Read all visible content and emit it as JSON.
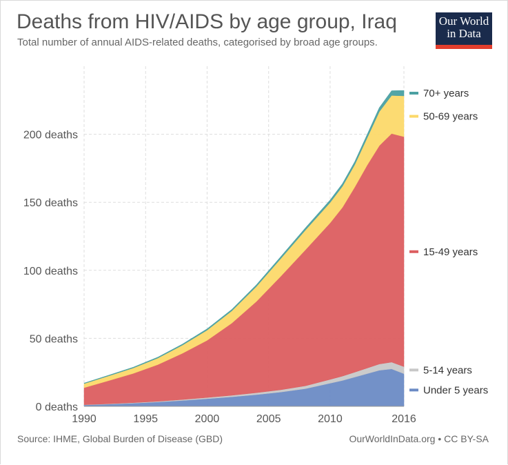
{
  "header": {
    "title": "Deaths from HIV/AIDS by age group, Iraq",
    "subtitle": "Total number of annual AIDS-related deaths, categorised by broad age groups.",
    "logo_line1": "Our World",
    "logo_line2": "in Data"
  },
  "footer": {
    "source": "Source: IHME, Global Burden of Disease (GBD)",
    "credit": "OurWorldInData.org • CC BY-SA"
  },
  "chart_data": {
    "type": "area",
    "stacked": true,
    "x": [
      1990,
      1992,
      1994,
      1996,
      1998,
      2000,
      2002,
      2004,
      2006,
      2008,
      2010,
      2011,
      2012,
      2013,
      2014,
      2015,
      2016
    ],
    "xticks": [
      "1990",
      "1995",
      "2000",
      "2005",
      "2010",
      "2016"
    ],
    "xtick_values": [
      1990,
      1995,
      2000,
      2005,
      2010,
      2016
    ],
    "yticks": [
      "0 deaths",
      "50 deaths",
      "100 deaths",
      "150 deaths",
      "200 deaths"
    ],
    "ytick_values": [
      0,
      50,
      100,
      150,
      200
    ],
    "ylim": [
      0,
      250
    ],
    "xlim": [
      1990,
      2016
    ],
    "grid": true,
    "legend_position": "right",
    "series": [
      {
        "name": "Under 5 years",
        "color": "#6c8bc5",
        "values": [
          1,
          1.6,
          2.3,
          3.2,
          4.3,
          5.6,
          7.0,
          8.6,
          10.5,
          13,
          17,
          19,
          21.5,
          24,
          26.5,
          27.5,
          24
        ]
      },
      {
        "name": "5-14 years",
        "color": "#c8c8c8",
        "values": [
          0.2,
          0.3,
          0.4,
          0.5,
          0.7,
          0.9,
          1.1,
          1.4,
          1.7,
          2.1,
          2.8,
          3.2,
          3.6,
          4.1,
          4.6,
          5,
          5.2
        ]
      },
      {
        "name": "15-49 years",
        "color": "#dc5e60",
        "values": [
          12.5,
          17,
          21.5,
          27,
          34,
          42,
          53,
          67,
          83.5,
          100,
          115,
          124,
          136,
          149,
          160.5,
          168,
          169
        ]
      },
      {
        "name": "50-69 years",
        "color": "#fcd96a",
        "values": [
          3,
          3.5,
          4,
          4.8,
          6,
          7.5,
          9,
          11,
          13,
          14.5,
          15,
          15.5,
          16.5,
          20,
          25,
          28,
          30
        ]
      },
      {
        "name": "70+ years",
        "color": "#4aa0a2",
        "values": [
          0.4,
          0.5,
          0.6,
          0.7,
          0.8,
          1,
          1.1,
          1.3,
          1.5,
          1.7,
          1.9,
          2,
          2.2,
          2.5,
          3,
          3.5,
          4
        ]
      }
    ]
  }
}
